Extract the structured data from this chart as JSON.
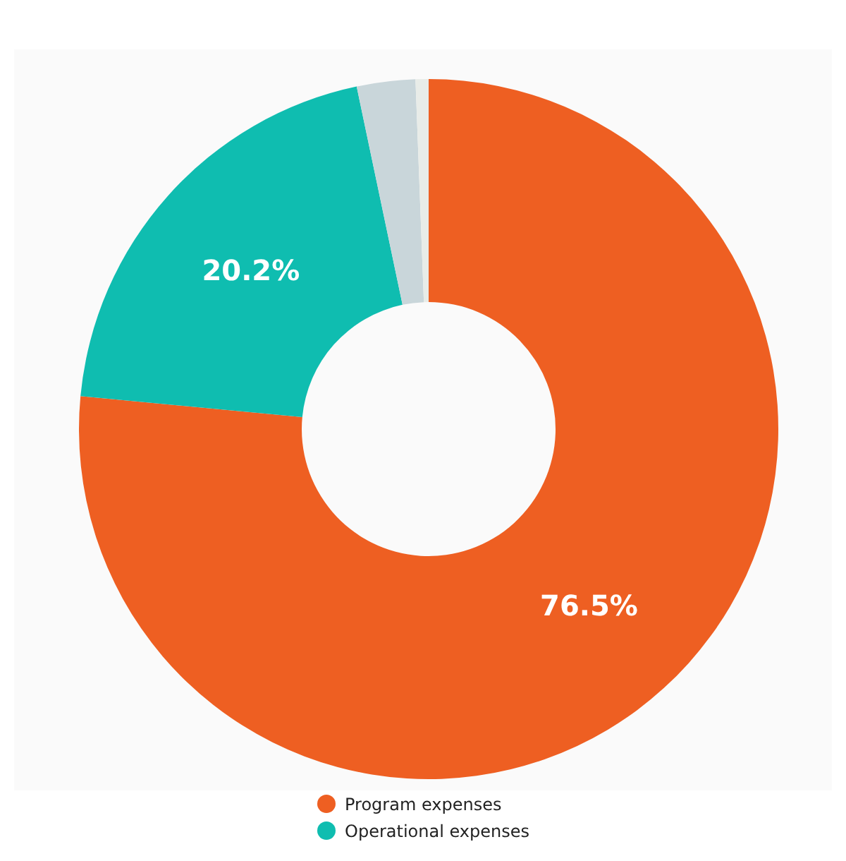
{
  "chart_data": {
    "type": "donut",
    "categories": [
      "Program expenses",
      "Operational expenses",
      null,
      null
    ],
    "values": [
      76.5,
      20.2,
      2.7,
      0.6
    ],
    "colors": [
      "#ee5f22",
      "#0fbdb0",
      "#c9d6da",
      "#e8ece8"
    ],
    "value_labels": [
      "76.5%",
      "20.2%",
      null,
      null
    ],
    "legend": "bottom"
  }
}
